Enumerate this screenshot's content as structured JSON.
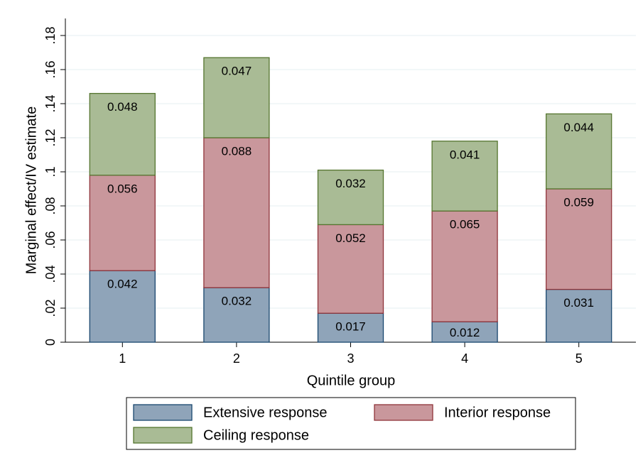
{
  "chart_data": {
    "type": "stacked_bar",
    "y_label": "Marginal effect/IV estimate",
    "x_label": "Quintile group",
    "categories": [
      "1",
      "2",
      "3",
      "4",
      "5"
    ],
    "series": [
      {
        "name": "Extensive response",
        "color": "#8fa4b9",
        "stroke": "#1a476f",
        "values": [
          0.042,
          0.032,
          0.017,
          0.012,
          0.031
        ]
      },
      {
        "name": "Interior response",
        "color": "#c9979c",
        "stroke": "#90353b",
        "values": [
          0.056,
          0.088,
          0.052,
          0.065,
          0.059
        ]
      },
      {
        "name": "Ceiling response",
        "color": "#a9bb95",
        "stroke": "#55752f",
        "values": [
          0.048,
          0.047,
          0.032,
          0.041,
          0.044
        ]
      }
    ],
    "ylim": [
      0,
      0.19
    ],
    "yticks": [
      0,
      {
        "value": 0.02,
        "label": ".02"
      },
      {
        "value": 0.04,
        "label": ".04"
      },
      {
        "value": 0.06,
        "label": ".06"
      },
      {
        "value": 0.08,
        "label": ".08"
      },
      {
        "value": 0.1,
        "label": ".1"
      },
      {
        "value": 0.12,
        "label": ".12"
      },
      {
        "value": 0.14,
        "label": ".14"
      },
      {
        "value": 0.16,
        "label": ".16"
      },
      {
        "value": 0.18,
        "label": ".18"
      }
    ],
    "grid": true,
    "legend": "bottom"
  }
}
